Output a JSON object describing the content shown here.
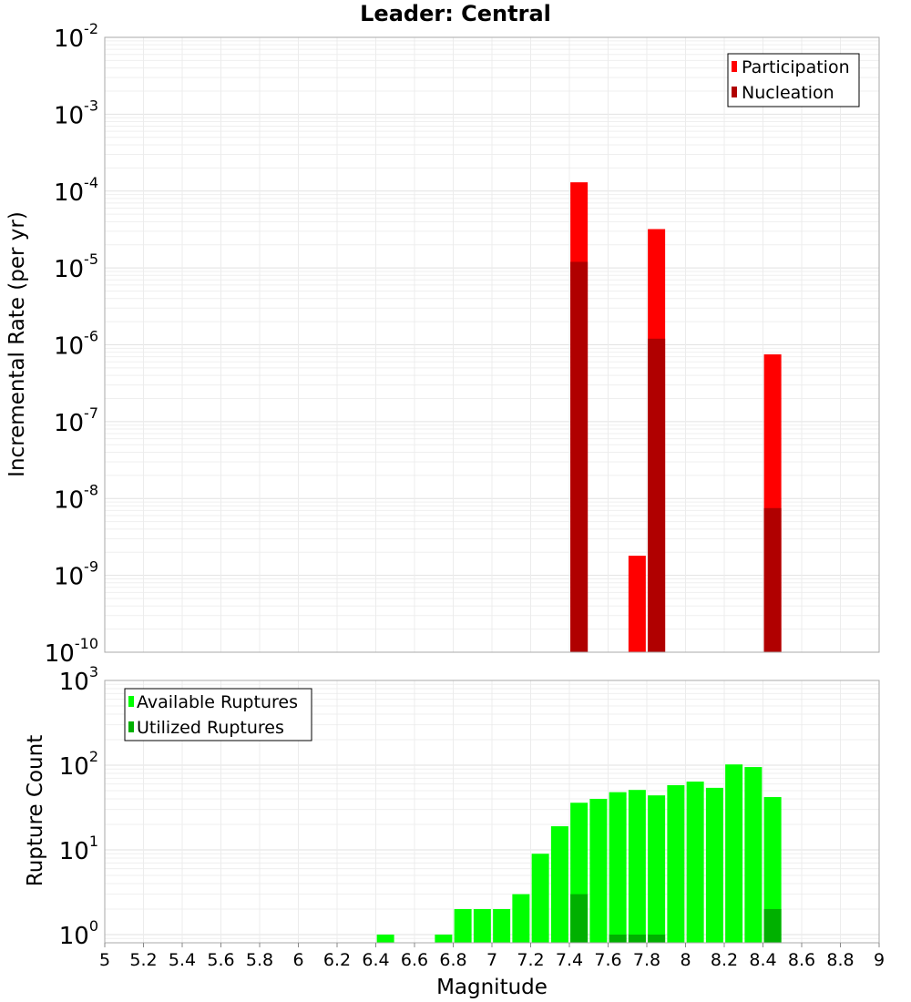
{
  "chart_data": [
    {
      "type": "bar",
      "title": "Leader: Central",
      "xlabel": "",
      "ylabel": "Incremental Rate (per yr)",
      "yscale": "log",
      "xlim": [
        5,
        9
      ],
      "ylim": [
        1e-10,
        0.01
      ],
      "ytick_exponents": [
        "-10",
        "-9",
        "-8",
        "-7",
        "-6",
        "-5",
        "-4",
        "-3",
        "-2"
      ],
      "ytick_base": "10",
      "grid": true,
      "legend_position": "top-right",
      "series": [
        {
          "name": "Participation",
          "color": "#ff0000",
          "x": [
            7.45,
            7.75,
            7.85,
            8.45
          ],
          "values": [
            0.00013,
            1.8e-09,
            3.2e-05,
            7.5e-07
          ]
        },
        {
          "name": "Nucleation",
          "color": "#b00000",
          "x": [
            7.45,
            7.85,
            8.45
          ],
          "values": [
            1.2e-05,
            1.2e-06,
            7.5e-09
          ]
        }
      ]
    },
    {
      "type": "bar",
      "title": "",
      "xlabel": "Magnitude",
      "ylabel": "Rupture Count",
      "yscale": "log",
      "xlim": [
        5,
        9
      ],
      "ylim": [
        0.8,
        1000
      ],
      "ytick_exponents": [
        "0",
        "1",
        "2",
        "3"
      ],
      "ytick_base": "10",
      "xticks": [
        "5",
        "5.2",
        "5.4",
        "5.6",
        "5.8",
        "6",
        "6.2",
        "6.4",
        "6.6",
        "6.8",
        "7",
        "7.2",
        "7.4",
        "7.6",
        "7.8",
        "8",
        "8.2",
        "8.4",
        "8.6",
        "8.8",
        "9"
      ],
      "grid": true,
      "legend_position": "top-left",
      "series": [
        {
          "name": "Available Ruptures",
          "color": "#00ff00",
          "x": [
            6.45,
            6.75,
            6.85,
            6.95,
            7.05,
            7.15,
            7.25,
            7.35,
            7.45,
            7.55,
            7.65,
            7.75,
            7.85,
            7.95,
            8.05,
            8.15,
            8.25,
            8.35,
            8.45
          ],
          "values": [
            1,
            1,
            2,
            2,
            2,
            3,
            9,
            19,
            36,
            40,
            48,
            51,
            44,
            58,
            64,
            54,
            102,
            95,
            42
          ]
        },
        {
          "name": "Utilized Ruptures",
          "color": "#00b000",
          "x": [
            7.45,
            7.65,
            7.75,
            7.85,
            8.45
          ],
          "values": [
            3,
            1,
            1,
            1,
            2
          ]
        }
      ]
    }
  ]
}
